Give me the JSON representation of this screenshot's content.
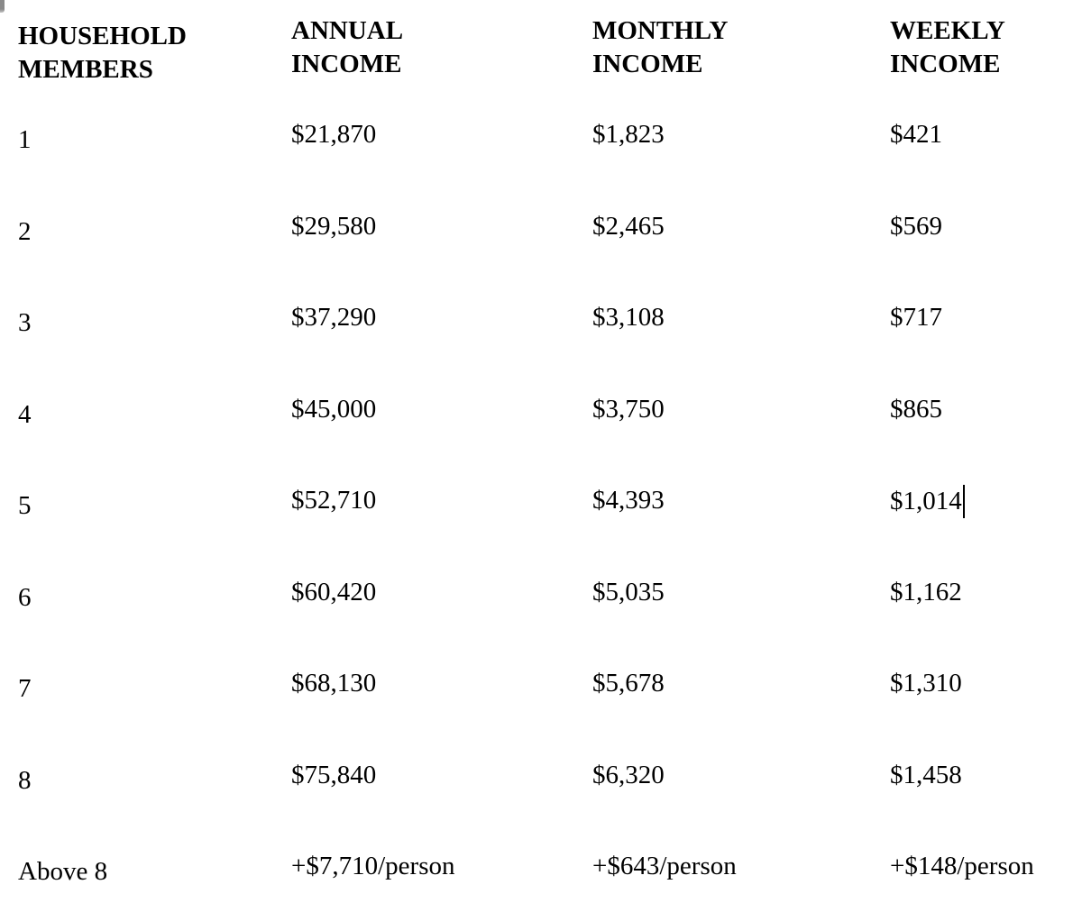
{
  "document": {
    "background": "#ffffff",
    "text_color": "#000000"
  },
  "window_fragment": {
    "color": "#8a8a8a"
  },
  "table": {
    "columns": [
      {
        "line1": "HOUSEHOLD",
        "line2": "MEMBERS"
      },
      {
        "line1": "ANNUAL",
        "line2": "INCOME"
      },
      {
        "line1": "MONTHLY",
        "line2": "INCOME"
      },
      {
        "line1": "WEEKLY",
        "line2": "INCOME"
      }
    ],
    "rows": [
      {
        "members": "1",
        "annual": "$21,870",
        "monthly": "$1,823",
        "weekly": "$421"
      },
      {
        "members": "2",
        "annual": "$29,580",
        "monthly": "$2,465",
        "weekly": "$569"
      },
      {
        "members": "3",
        "annual": "$37,290",
        "monthly": "$3,108",
        "weekly": "$717"
      },
      {
        "members": "4",
        "annual": "$45,000",
        "monthly": "$3,750",
        "weekly": "$865"
      },
      {
        "members": "5",
        "annual": "$52,710",
        "monthly": "$4,393",
        "weekly": "$1,014"
      },
      {
        "members": "6",
        "annual": "$60,420",
        "monthly": "$5,035",
        "weekly": "$1,162"
      },
      {
        "members": "7",
        "annual": "$68,130",
        "monthly": "$5,678",
        "weekly": "$1,310"
      },
      {
        "members": "8",
        "annual": "$75,840",
        "monthly": "$6,320",
        "weekly": "$1,458"
      },
      {
        "members": "Above 8",
        "annual": "+$7,710/person",
        "monthly": "+$643/person",
        "weekly": "+$148/person"
      }
    ],
    "text_cursor": {
      "row_index": 4,
      "column": "weekly",
      "visible": true
    }
  }
}
